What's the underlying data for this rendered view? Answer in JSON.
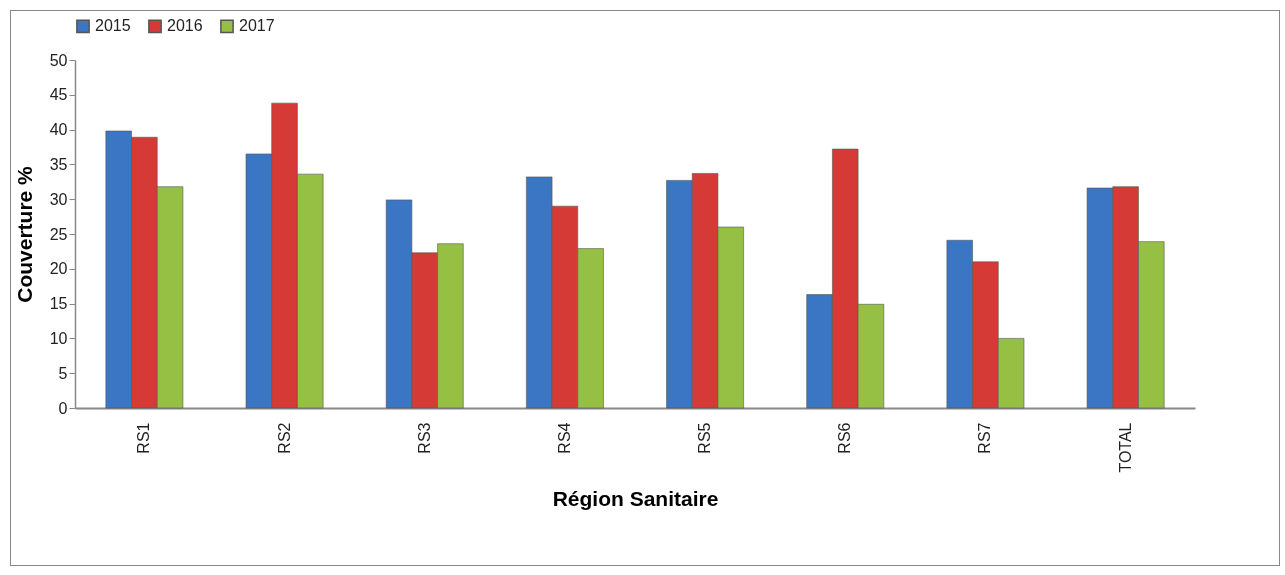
{
  "chart_data": {
    "type": "bar",
    "xlabel": "Région Sanitaire",
    "ylabel": "Couverture %",
    "categories": [
      "RS1",
      "RS2",
      "RS3",
      "RS4",
      "RS5",
      "RS6",
      "RS7",
      "TOTAL"
    ],
    "series": [
      {
        "name": "2015",
        "color": "#3a76c4",
        "values": [
          39.8,
          36.5,
          29.9,
          33.2,
          32.7,
          16.3,
          24.1,
          31.6
        ]
      },
      {
        "name": "2016",
        "color": "#d63a36",
        "values": [
          38.9,
          43.8,
          22.3,
          29.0,
          33.7,
          37.2,
          21.0,
          31.8
        ]
      },
      {
        "name": "2017",
        "color": "#96c043",
        "values": [
          31.8,
          33.6,
          23.6,
          22.9,
          26.0,
          14.9,
          10.0,
          23.9
        ]
      }
    ],
    "ylim": [
      0,
      50
    ],
    "yticks": [
      0,
      5,
      10,
      15,
      20,
      25,
      30,
      35,
      40,
      45,
      50
    ],
    "grid": false,
    "legend": "top"
  }
}
